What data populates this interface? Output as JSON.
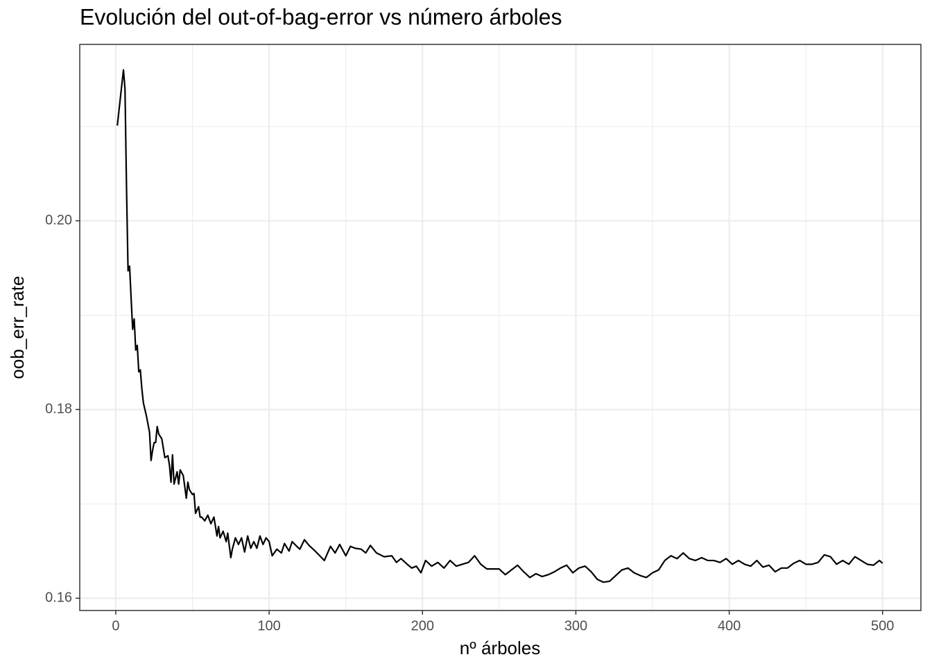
{
  "chart_data": {
    "type": "line",
    "title": "Evolución del out-of-bag-error vs número árboles",
    "x_label": "nº árboles",
    "y_label": "oob_err_rate",
    "xlim": [
      -23.5,
      525
    ],
    "ylim": [
      0.1587,
      0.2187
    ],
    "xticks": [
      0,
      100,
      200,
      300,
      400,
      500
    ],
    "yticks": [
      {
        "value": 0.16,
        "label": "0.16"
      },
      {
        "value": 0.18,
        "label": "0.18"
      },
      {
        "value": 0.2,
        "label": "0.20"
      }
    ],
    "xminor": [
      50,
      150,
      250,
      350,
      450
    ],
    "yminor": [
      0.17,
      0.19,
      0.21
    ],
    "grid": true,
    "series": [
      {
        "name": "oob_err_rate",
        "color": "#000000",
        "x": [
          1,
          5,
          6,
          7,
          8,
          9,
          10,
          11,
          12,
          13,
          14,
          15,
          16,
          17,
          18,
          20,
          22,
          23,
          24,
          25,
          26,
          27,
          28,
          30,
          32,
          34,
          35,
          36,
          37,
          38,
          40,
          41,
          42,
          44,
          46,
          47,
          48,
          50,
          51,
          52,
          54,
          55,
          56,
          58,
          60,
          62,
          64,
          66,
          67,
          68,
          70,
          72,
          73,
          75,
          76,
          78,
          80,
          82,
          84,
          86,
          88,
          90,
          92,
          94,
          96,
          98,
          100,
          102,
          105,
          108,
          110,
          113,
          115,
          118,
          120,
          123,
          126,
          130,
          133,
          136,
          140,
          143,
          146,
          150,
          153,
          156,
          160,
          163,
          166,
          170,
          175,
          180,
          183,
          186,
          190,
          193,
          196,
          199,
          202,
          206,
          210,
          214,
          218,
          222,
          226,
          230,
          234,
          238,
          242,
          246,
          250,
          254,
          258,
          262,
          266,
          270,
          274,
          278,
          282,
          286,
          290,
          294,
          298,
          302,
          306,
          310,
          314,
          318,
          322,
          326,
          330,
          334,
          338,
          342,
          346,
          350,
          354,
          358,
          362,
          366,
          370,
          374,
          378,
          382,
          386,
          390,
          394,
          398,
          402,
          406,
          410,
          414,
          418,
          422,
          426,
          430,
          434,
          438,
          442,
          446,
          450,
          454,
          458,
          462,
          466,
          470,
          474,
          478,
          482,
          486,
          490,
          494,
          498,
          500
        ],
        "values": [
          0.2101,
          0.216,
          0.214,
          0.2035,
          0.1947,
          0.1952,
          0.1918,
          0.1885,
          0.1896,
          0.1863,
          0.1868,
          0.184,
          0.1842,
          0.1822,
          0.1807,
          0.1793,
          0.1776,
          0.1746,
          0.1757,
          0.1765,
          0.1765,
          0.1782,
          0.1774,
          0.1769,
          0.1749,
          0.1751,
          0.1741,
          0.1723,
          0.1752,
          0.1721,
          0.1734,
          0.1721,
          0.1736,
          0.173,
          0.1706,
          0.1723,
          0.1715,
          0.171,
          0.1711,
          0.169,
          0.1697,
          0.1686,
          0.1686,
          0.1682,
          0.1688,
          0.1679,
          0.1686,
          0.1666,
          0.1676,
          0.1664,
          0.1671,
          0.166,
          0.1669,
          0.1643,
          0.1652,
          0.1664,
          0.1657,
          0.1664,
          0.1649,
          0.1666,
          0.1653,
          0.166,
          0.1653,
          0.1666,
          0.1657,
          0.1664,
          0.166,
          0.1645,
          0.1652,
          0.1648,
          0.1658,
          0.165,
          0.166,
          0.1655,
          0.1652,
          0.1662,
          0.1656,
          0.165,
          0.1645,
          0.164,
          0.1655,
          0.1648,
          0.1657,
          0.1645,
          0.1655,
          0.1653,
          0.1652,
          0.1648,
          0.1656,
          0.1648,
          0.1644,
          0.1645,
          0.1638,
          0.1642,
          0.1636,
          0.1632,
          0.1634,
          0.1627,
          0.164,
          0.1634,
          0.1638,
          0.1632,
          0.164,
          0.1634,
          0.1636,
          0.1638,
          0.1645,
          0.1636,
          0.1631,
          0.1631,
          0.1631,
          0.1625,
          0.163,
          0.1635,
          0.1628,
          0.1622,
          0.1626,
          0.1623,
          0.1625,
          0.1628,
          0.1632,
          0.1635,
          0.1627,
          0.1632,
          0.1634,
          0.1628,
          0.162,
          0.1617,
          0.1618,
          0.1624,
          0.163,
          0.1632,
          0.1627,
          0.1624,
          0.1622,
          0.1627,
          0.163,
          0.164,
          0.1645,
          0.1642,
          0.1648,
          0.1642,
          0.164,
          0.1643,
          0.164,
          0.164,
          0.1638,
          0.1642,
          0.1636,
          0.164,
          0.1636,
          0.1634,
          0.164,
          0.1633,
          0.1635,
          0.1628,
          0.1632,
          0.1632,
          0.1637,
          0.164,
          0.1636,
          0.1636,
          0.1638,
          0.1646,
          0.1644,
          0.1636,
          0.164,
          0.1636,
          0.1644,
          0.164,
          0.1636,
          0.1635,
          0.164,
          0.1637
        ]
      }
    ]
  }
}
